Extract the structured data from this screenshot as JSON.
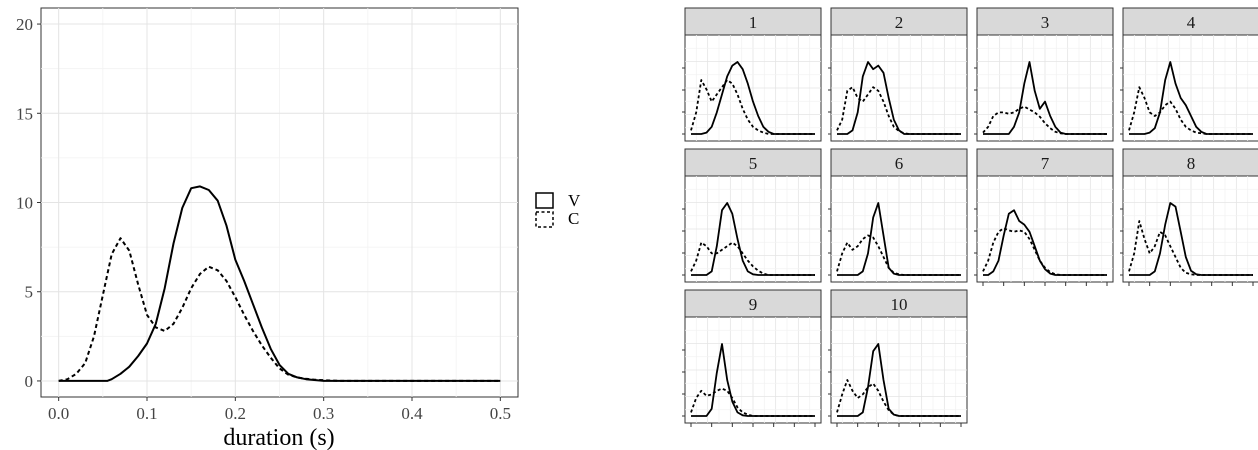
{
  "chart_data": [
    {
      "type": "line",
      "title": "",
      "xlabel": "duration (s)",
      "ylabel": "",
      "xlim": [
        -0.02,
        0.52
      ],
      "ylim": [
        -0.9,
        20.9
      ],
      "xticks": [
        0.0,
        0.1,
        0.2,
        0.3,
        0.4,
        0.5
      ],
      "xtick_labels": [
        "0.0",
        "0.1",
        "0.2",
        "0.3",
        "0.4",
        "0.5"
      ],
      "yticks": [
        0,
        5,
        10,
        15,
        20
      ],
      "ytick_labels": [
        "0",
        "5",
        "10",
        "15",
        "20"
      ],
      "grid": true,
      "legend_position": "right",
      "series": [
        {
          "name": "V",
          "line_style": "solid",
          "x": [
            0.0,
            0.055,
            0.06,
            0.07,
            0.08,
            0.09,
            0.1,
            0.11,
            0.12,
            0.13,
            0.14,
            0.15,
            0.16,
            0.17,
            0.18,
            0.19,
            0.2,
            0.21,
            0.22,
            0.23,
            0.24,
            0.25,
            0.26,
            0.27,
            0.28,
            0.3,
            0.5
          ],
          "y": [
            0,
            0,
            0.1,
            0.4,
            0.8,
            1.4,
            2.1,
            3.2,
            5.2,
            7.7,
            9.7,
            10.8,
            10.9,
            10.7,
            10.1,
            8.7,
            6.8,
            5.6,
            4.3,
            3.0,
            1.8,
            0.9,
            0.4,
            0.2,
            0.1,
            0,
            0
          ]
        },
        {
          "name": "C",
          "line_style": "dashed",
          "x": [
            0.0,
            0.01,
            0.02,
            0.03,
            0.04,
            0.05,
            0.06,
            0.07,
            0.08,
            0.09,
            0.1,
            0.11,
            0.12,
            0.13,
            0.14,
            0.15,
            0.16,
            0.17,
            0.18,
            0.19,
            0.2,
            0.21,
            0.22,
            0.23,
            0.24,
            0.25,
            0.26,
            0.27,
            0.28,
            0.29,
            0.3,
            0.31,
            0.32,
            0.5
          ],
          "y": [
            0,
            0.1,
            0.4,
            1.0,
            2.5,
            4.8,
            7.1,
            8.0,
            7.3,
            5.4,
            3.7,
            3.0,
            2.8,
            3.2,
            4.1,
            5.2,
            6.0,
            6.4,
            6.2,
            5.6,
            4.7,
            3.7,
            2.8,
            2.0,
            1.3,
            0.7,
            0.35,
            0.2,
            0.12,
            0.07,
            0.04,
            0.02,
            0,
            0
          ]
        }
      ]
    },
    {
      "type": "line",
      "title": "",
      "facet_kind": "small-multiples",
      "grid": true,
      "series_names": [
        "V",
        "C"
      ],
      "panels": [
        {
          "label": "1",
          "series": [
            {
              "name": "V",
              "y": [
                0,
                0,
                0,
                0.02,
                0.1,
                0.3,
                0.55,
                0.8,
                0.95,
                1.0,
                0.9,
                0.7,
                0.45,
                0.25,
                0.1,
                0.03,
                0,
                0,
                0,
                0,
                0,
                0,
                0,
                0,
                0
              ]
            },
            {
              "name": "C",
              "y": [
                0.05,
                0.3,
                0.75,
                0.62,
                0.45,
                0.55,
                0.65,
                0.75,
                0.7,
                0.55,
                0.35,
                0.2,
                0.1,
                0.05,
                0.02,
                0,
                0,
                0,
                0,
                0,
                0,
                0,
                0,
                0,
                0
              ]
            }
          ]
        },
        {
          "label": "2",
          "series": [
            {
              "name": "V",
              "y": [
                0,
                0,
                0,
                0.05,
                0.3,
                0.8,
                1.0,
                0.9,
                0.95,
                0.85,
                0.5,
                0.2,
                0.05,
                0,
                0,
                0,
                0,
                0,
                0,
                0,
                0,
                0,
                0,
                0,
                0
              ]
            },
            {
              "name": "C",
              "y": [
                0.05,
                0.2,
                0.6,
                0.65,
                0.5,
                0.45,
                0.55,
                0.65,
                0.6,
                0.45,
                0.25,
                0.1,
                0.04,
                0.01,
                0,
                0,
                0,
                0,
                0,
                0,
                0,
                0,
                0,
                0,
                0
              ]
            }
          ]
        },
        {
          "label": "3",
          "series": [
            {
              "name": "V",
              "y": [
                0,
                0,
                0,
                0,
                0,
                0,
                0.1,
                0.3,
                0.7,
                1.0,
                0.6,
                0.35,
                0.45,
                0.25,
                0.1,
                0.02,
                0,
                0,
                0,
                0,
                0,
                0,
                0,
                0,
                0
              ]
            },
            {
              "name": "C",
              "y": [
                0.02,
                0.1,
                0.25,
                0.3,
                0.3,
                0.28,
                0.3,
                0.35,
                0.38,
                0.34,
                0.3,
                0.24,
                0.15,
                0.08,
                0.03,
                0.01,
                0,
                0,
                0,
                0,
                0,
                0,
                0,
                0,
                0
              ]
            }
          ]
        },
        {
          "label": "4",
          "series": [
            {
              "name": "V",
              "y": [
                0,
                0,
                0,
                0,
                0.02,
                0.08,
                0.3,
                0.75,
                1.0,
                0.7,
                0.5,
                0.4,
                0.25,
                0.1,
                0.03,
                0,
                0,
                0,
                0,
                0,
                0,
                0,
                0,
                0,
                0
              ]
            },
            {
              "name": "C",
              "y": [
                0.05,
                0.3,
                0.65,
                0.5,
                0.3,
                0.25,
                0.3,
                0.4,
                0.45,
                0.35,
                0.2,
                0.1,
                0.05,
                0.02,
                0.01,
                0,
                0,
                0,
                0,
                0,
                0,
                0,
                0,
                0,
                0
              ]
            }
          ]
        },
        {
          "label": "5",
          "series": [
            {
              "name": "V",
              "y": [
                0,
                0,
                0,
                0,
                0.05,
                0.4,
                0.9,
                1.0,
                0.85,
                0.5,
                0.2,
                0.05,
                0.01,
                0,
                0,
                0,
                0,
                0,
                0,
                0,
                0,
                0,
                0,
                0,
                0
              ]
            },
            {
              "name": "C",
              "y": [
                0.05,
                0.2,
                0.45,
                0.4,
                0.3,
                0.3,
                0.35,
                0.4,
                0.45,
                0.4,
                0.3,
                0.2,
                0.12,
                0.06,
                0.02,
                0,
                0,
                0,
                0,
                0,
                0,
                0,
                0,
                0,
                0
              ]
            }
          ]
        },
        {
          "label": "6",
          "series": [
            {
              "name": "V",
              "y": [
                0,
                0,
                0,
                0,
                0,
                0.05,
                0.3,
                0.8,
                1.0,
                0.55,
                0.1,
                0.02,
                0,
                0,
                0,
                0,
                0,
                0,
                0,
                0,
                0,
                0,
                0,
                0,
                0
              ]
            },
            {
              "name": "C",
              "y": [
                0.05,
                0.3,
                0.45,
                0.35,
                0.4,
                0.5,
                0.55,
                0.52,
                0.4,
                0.25,
                0.1,
                0.03,
                0.01,
                0,
                0,
                0,
                0,
                0,
                0,
                0,
                0,
                0,
                0,
                0,
                0
              ]
            }
          ]
        },
        {
          "label": "7",
          "series": [
            {
              "name": "V",
              "y": [
                0,
                0,
                0.05,
                0.2,
                0.55,
                0.85,
                0.9,
                0.75,
                0.7,
                0.6,
                0.4,
                0.2,
                0.08,
                0.02,
                0,
                0,
                0,
                0,
                0,
                0,
                0,
                0,
                0,
                0,
                0
              ]
            },
            {
              "name": "C",
              "y": [
                0.05,
                0.2,
                0.45,
                0.6,
                0.65,
                0.62,
                0.6,
                0.62,
                0.6,
                0.5,
                0.35,
                0.2,
                0.1,
                0.04,
                0.01,
                0,
                0,
                0,
                0,
                0,
                0,
                0,
                0,
                0,
                0
              ]
            }
          ]
        },
        {
          "label": "8",
          "series": [
            {
              "name": "V",
              "y": [
                0,
                0,
                0,
                0,
                0,
                0.05,
                0.3,
                0.7,
                1.0,
                0.95,
                0.6,
                0.25,
                0.06,
                0.01,
                0,
                0,
                0,
                0,
                0,
                0,
                0,
                0,
                0,
                0,
                0
              ]
            },
            {
              "name": "C",
              "y": [
                0.05,
                0.3,
                0.75,
                0.5,
                0.3,
                0.4,
                0.6,
                0.55,
                0.4,
                0.25,
                0.1,
                0.03,
                0.01,
                0,
                0,
                0,
                0,
                0,
                0,
                0,
                0,
                0,
                0,
                0,
                0
              ]
            }
          ]
        },
        {
          "label": "9",
          "series": [
            {
              "name": "V",
              "y": [
                0,
                0,
                0,
                0,
                0.1,
                0.6,
                1.0,
                0.5,
                0.2,
                0.05,
                0.01,
                0,
                0,
                0,
                0,
                0,
                0,
                0,
                0,
                0,
                0,
                0,
                0,
                0,
                0
              ]
            },
            {
              "name": "C",
              "y": [
                0.05,
                0.25,
                0.35,
                0.28,
                0.3,
                0.35,
                0.38,
                0.35,
                0.25,
                0.12,
                0.05,
                0.02,
                0,
                0,
                0,
                0,
                0,
                0,
                0,
                0,
                0,
                0,
                0,
                0,
                0
              ]
            }
          ]
        },
        {
          "label": "10",
          "series": [
            {
              "name": "V",
              "y": [
                0,
                0,
                0,
                0,
                0,
                0.05,
                0.4,
                0.9,
                1.0,
                0.5,
                0.1,
                0.02,
                0,
                0,
                0,
                0,
                0,
                0,
                0,
                0,
                0,
                0,
                0,
                0,
                0
              ]
            },
            {
              "name": "C",
              "y": [
                0.05,
                0.3,
                0.5,
                0.35,
                0.25,
                0.3,
                0.4,
                0.45,
                0.35,
                0.2,
                0.08,
                0.02,
                0,
                0,
                0,
                0,
                0,
                0,
                0,
                0,
                0,
                0,
                0,
                0,
                0
              ]
            }
          ]
        }
      ]
    }
  ]
}
